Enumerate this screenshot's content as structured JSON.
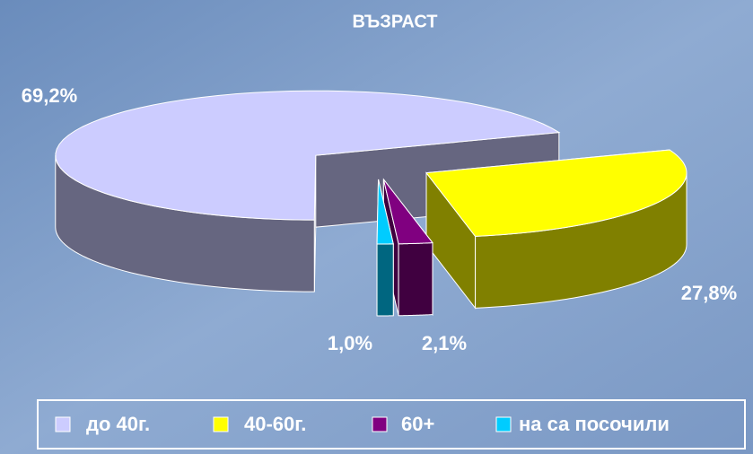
{
  "chart_data": {
    "type": "pie",
    "title": "ВЪЗРАСТ",
    "categories": [
      "до 40г.",
      "40-60г.",
      "60+",
      "на са посочили"
    ],
    "values": [
      69.2,
      27.8,
      2.1,
      1.0
    ],
    "value_labels": [
      "69,2%",
      "27,8%",
      "2,1%",
      "1,0%"
    ],
    "colors": [
      "#ccccff",
      "#ffff00",
      "#800080",
      "#00ccff"
    ]
  }
}
